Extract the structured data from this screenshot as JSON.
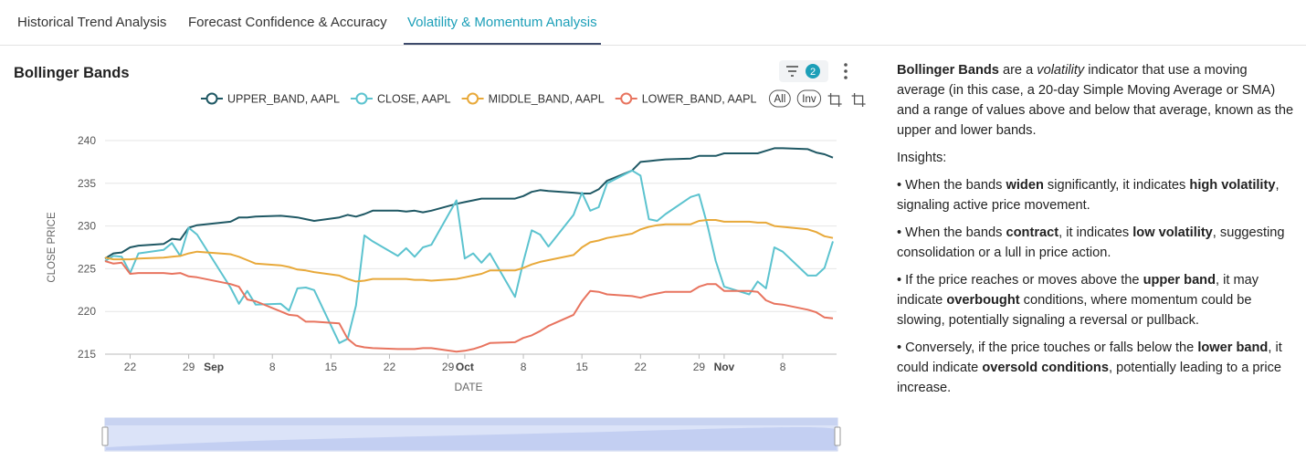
{
  "tabs": {
    "items": [
      "Historical Trend Analysis",
      "Forecast Confidence & Accuracy",
      "Volatility & Momentum Analysis"
    ],
    "active": 2
  },
  "filter_count": 2,
  "legend_buttons": [
    "All",
    "Inv"
  ],
  "chart_data": {
    "type": "line",
    "title": "Bollinger Bands",
    "x_label": "DATE",
    "y_label": "CLOSE PRICE",
    "x": [
      "08-19",
      "08-20",
      "08-21",
      "08-22",
      "08-23",
      "08-26",
      "08-27",
      "08-28",
      "08-29",
      "08-30",
      "09-03",
      "09-04",
      "09-05",
      "09-06",
      "09-09",
      "09-10",
      "09-11",
      "09-12",
      "09-13",
      "09-16",
      "09-17",
      "09-18",
      "09-19",
      "09-20",
      "09-23",
      "09-24",
      "09-25",
      "09-26",
      "09-27",
      "09-30",
      "10-01",
      "10-02",
      "10-03",
      "10-04",
      "10-07",
      "10-08",
      "10-09",
      "10-10",
      "10-11",
      "10-14",
      "10-15",
      "10-16",
      "10-17",
      "10-18",
      "10-21",
      "10-22",
      "10-23",
      "10-24",
      "10-25",
      "10-28",
      "10-29",
      "10-30",
      "10-31",
      "11-01",
      "11-04",
      "11-05",
      "11-06",
      "11-07",
      "11-08",
      "11-11",
      "11-12",
      "11-13",
      "11-14"
    ],
    "series": [
      {
        "name": "UPPER_BAND, AAPL",
        "color": "#1f5864",
        "values": [
          226.2,
          226.8,
          226.9,
          227.5,
          227.7,
          227.9,
          228.5,
          228.4,
          229.8,
          230.1,
          230.5,
          231.0,
          231.0,
          231.1,
          231.2,
          231.1,
          231.0,
          230.8,
          230.6,
          231.0,
          231.3,
          231.1,
          231.4,
          231.8,
          231.8,
          231.7,
          231.8,
          231.6,
          231.8,
          232.6,
          232.8,
          233.0,
          233.2,
          233.2,
          233.2,
          233.5,
          234.0,
          234.2,
          234.1,
          233.9,
          233.8,
          233.8,
          234.3,
          235.3,
          236.5,
          237.5,
          237.6,
          237.7,
          237.8,
          237.9,
          238.2,
          238.2,
          238.2,
          238.5,
          238.5,
          238.5,
          238.8,
          239.1,
          239.1,
          239.0,
          238.6,
          238.4,
          238.0
        ]
      },
      {
        "name": "CLOSE, AAPL",
        "color": "#5cc3cf",
        "values": [
          225.9,
          226.5,
          226.4,
          224.5,
          226.8,
          227.2,
          228.0,
          226.5,
          229.8,
          229.0,
          222.8,
          220.9,
          222.4,
          220.8,
          220.9,
          220.1,
          222.7,
          222.8,
          222.5,
          216.3,
          216.8,
          220.7,
          228.9,
          228.2,
          226.5,
          227.4,
          226.4,
          227.5,
          227.8,
          233.0,
          226.2,
          226.8,
          225.7,
          226.8,
          221.7,
          225.8,
          229.5,
          229.0,
          227.6,
          231.3,
          233.9,
          231.8,
          232.2,
          235.0,
          236.5,
          235.9,
          230.8,
          230.6,
          231.4,
          233.4,
          233.7,
          230.1,
          225.9,
          222.9,
          222.0,
          223.5,
          222.7,
          227.5,
          227.0,
          224.2,
          224.2,
          225.1,
          228.2
        ]
      },
      {
        "name": "MIDDLE_BAND, AAPL",
        "color": "#e8a93a",
        "values": [
          226.3,
          226.1,
          226.1,
          226.1,
          226.2,
          226.3,
          226.4,
          226.5,
          226.8,
          227.0,
          226.7,
          226.4,
          226.0,
          225.6,
          225.4,
          225.2,
          224.9,
          224.8,
          224.6,
          224.2,
          223.8,
          223.5,
          223.6,
          223.8,
          223.8,
          223.8,
          223.7,
          223.7,
          223.6,
          223.8,
          224.0,
          224.2,
          224.4,
          224.8,
          224.8,
          225.1,
          225.5,
          225.8,
          226.0,
          226.6,
          227.5,
          228.1,
          228.3,
          228.6,
          229.1,
          229.6,
          229.9,
          230.1,
          230.2,
          230.2,
          230.6,
          230.7,
          230.7,
          230.5,
          230.5,
          230.4,
          230.4,
          230.0,
          229.9,
          229.6,
          229.3,
          228.8,
          228.6
        ]
      },
      {
        "name": "LOWER_BAND, AAPL",
        "color": "#e8745f",
        "values": [
          225.9,
          225.6,
          225.7,
          224.4,
          224.5,
          224.5,
          224.4,
          224.5,
          224.1,
          224.0,
          223.2,
          222.9,
          221.4,
          221.2,
          220.0,
          219.6,
          219.5,
          218.8,
          218.8,
          218.6,
          216.8,
          216.0,
          215.8,
          215.7,
          215.6,
          215.6,
          215.6,
          215.7,
          215.7,
          215.3,
          215.4,
          215.6,
          215.9,
          216.3,
          216.4,
          216.9,
          217.2,
          217.7,
          218.3,
          219.6,
          221.2,
          222.4,
          222.3,
          222.0,
          221.8,
          221.6,
          221.9,
          222.1,
          222.3,
          222.3,
          222.9,
          223.2,
          223.2,
          222.4,
          222.4,
          222.3,
          221.3,
          220.9,
          220.8,
          220.2,
          219.9,
          219.3,
          219.2
        ]
      }
    ],
    "xlim": [
      "08-19",
      "11-14"
    ],
    "xticks": [
      {
        "value": "08-22",
        "label": "22"
      },
      {
        "value": "08-29",
        "label": "29"
      },
      {
        "value": "09-01",
        "label": "Sep"
      },
      {
        "value": "09-08",
        "label": "8"
      },
      {
        "value": "09-15",
        "label": "15"
      },
      {
        "value": "09-22",
        "label": "22"
      },
      {
        "value": "09-29",
        "label": "29"
      },
      {
        "value": "10-01",
        "label": "Oct"
      },
      {
        "value": "10-08",
        "label": "8"
      },
      {
        "value": "10-15",
        "label": "15"
      },
      {
        "value": "10-22",
        "label": "22"
      },
      {
        "value": "10-29",
        "label": "29"
      },
      {
        "value": "11-01",
        "label": "Nov"
      },
      {
        "value": "11-08",
        "label": "8"
      }
    ],
    "ylim": [
      215,
      240
    ],
    "yticks": [
      215,
      220,
      225,
      230,
      235,
      240
    ],
    "grid": true,
    "legend": "top"
  },
  "description": {
    "paragraphs": [
      {
        "runs": [
          {
            "text": "Bollinger Bands",
            "style": "bold"
          },
          {
            "text": " are a "
          },
          {
            "text": "volatility",
            "style": "italic"
          },
          {
            "text": " indicator that use a moving average (in this case, a 20-day Simple Moving Average or SMA) and a range of values above and below that average, known as the upper and lower bands."
          }
        ]
      },
      {
        "runs": [
          {
            "text": "Insights:"
          }
        ]
      },
      {
        "runs": [
          {
            "text": "• When the bands "
          },
          {
            "text": "widen",
            "style": "bold"
          },
          {
            "text": " significantly, it indicates "
          },
          {
            "text": "high volatility",
            "style": "bold"
          },
          {
            "text": ", signaling active price movement."
          }
        ]
      },
      {
        "runs": [
          {
            "text": "• When the bands "
          },
          {
            "text": "contract",
            "style": "bold"
          },
          {
            "text": ", it indicates "
          },
          {
            "text": "low volatility",
            "style": "bold"
          },
          {
            "text": ", suggesting consolidation or a lull in price action."
          }
        ]
      },
      {
        "runs": [
          {
            "text": "• If the price reaches or moves above the "
          },
          {
            "text": "upper band",
            "style": "bold"
          },
          {
            "text": ", it may indicate "
          },
          {
            "text": "overbought",
            "style": "bold"
          },
          {
            "text": " conditions, where momentum could be slowing, potentially signaling a reversal or pullback."
          }
        ]
      },
      {
        "runs": [
          {
            "text": "• Conversely, if the price touches or falls below the "
          },
          {
            "text": "lower band",
            "style": "bold"
          },
          {
            "text": ", it could indicate "
          },
          {
            "text": "oversold conditions",
            "style": "bold"
          },
          {
            "text": ", potentially leading to a price increase."
          }
        ]
      }
    ]
  }
}
